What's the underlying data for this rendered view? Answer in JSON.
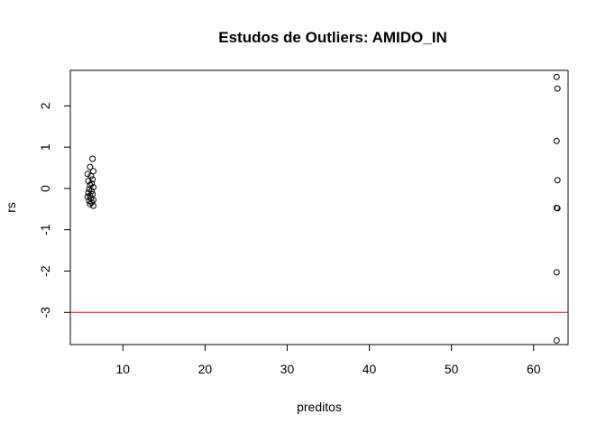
{
  "chart_data": {
    "type": "scatter",
    "title": "Estudos de Outliers:  AMIDO_IN",
    "xlabel": "preditos",
    "ylabel": "rs",
    "xlim": [
      3.6,
      64.2
    ],
    "ylim": [
      -3.78,
      2.86
    ],
    "x_ticks": [
      10,
      20,
      30,
      40,
      50,
      60
    ],
    "y_ticks": [
      -3,
      -2,
      -1,
      0,
      1,
      2
    ],
    "x_tick_labels": [
      "10",
      "20",
      "30",
      "40",
      "50",
      "60"
    ],
    "y_tick_labels": [
      "-3",
      "-2",
      "-1",
      "0",
      "1",
      "2"
    ],
    "reference_line": {
      "y": -3,
      "color": "#ff0000"
    },
    "grid": false,
    "legend": "none",
    "point_style": "open-circle",
    "points": [
      {
        "x": 6.3,
        "y": 0.72
      },
      {
        "x": 6.0,
        "y": 0.52
      },
      {
        "x": 6.4,
        "y": 0.42
      },
      {
        "x": 5.7,
        "y": 0.35
      },
      {
        "x": 6.1,
        "y": 0.3
      },
      {
        "x": 6.3,
        "y": 0.22
      },
      {
        "x": 5.8,
        "y": 0.18
      },
      {
        "x": 6.2,
        "y": 0.12
      },
      {
        "x": 6.0,
        "y": 0.08
      },
      {
        "x": 6.4,
        "y": 0.03
      },
      {
        "x": 5.9,
        "y": -0.02
      },
      {
        "x": 6.2,
        "y": -0.06
      },
      {
        "x": 5.8,
        "y": -0.1
      },
      {
        "x": 6.3,
        "y": -0.14
      },
      {
        "x": 6.0,
        "y": -0.18
      },
      {
        "x": 5.7,
        "y": -0.2
      },
      {
        "x": 6.1,
        "y": -0.24
      },
      {
        "x": 6.4,
        "y": -0.28
      },
      {
        "x": 5.9,
        "y": -0.3
      },
      {
        "x": 6.2,
        "y": -0.34
      },
      {
        "x": 6.0,
        "y": -0.38
      },
      {
        "x": 6.4,
        "y": -0.42
      },
      {
        "x": 62.8,
        "y": 2.7
      },
      {
        "x": 62.9,
        "y": 2.42
      },
      {
        "x": 62.8,
        "y": 1.15
      },
      {
        "x": 62.9,
        "y": 0.2
      },
      {
        "x": 62.8,
        "y": -0.47
      },
      {
        "x": 62.9,
        "y": -0.48
      },
      {
        "x": 62.8,
        "y": -2.03
      },
      {
        "x": 62.8,
        "y": -3.68
      }
    ]
  }
}
